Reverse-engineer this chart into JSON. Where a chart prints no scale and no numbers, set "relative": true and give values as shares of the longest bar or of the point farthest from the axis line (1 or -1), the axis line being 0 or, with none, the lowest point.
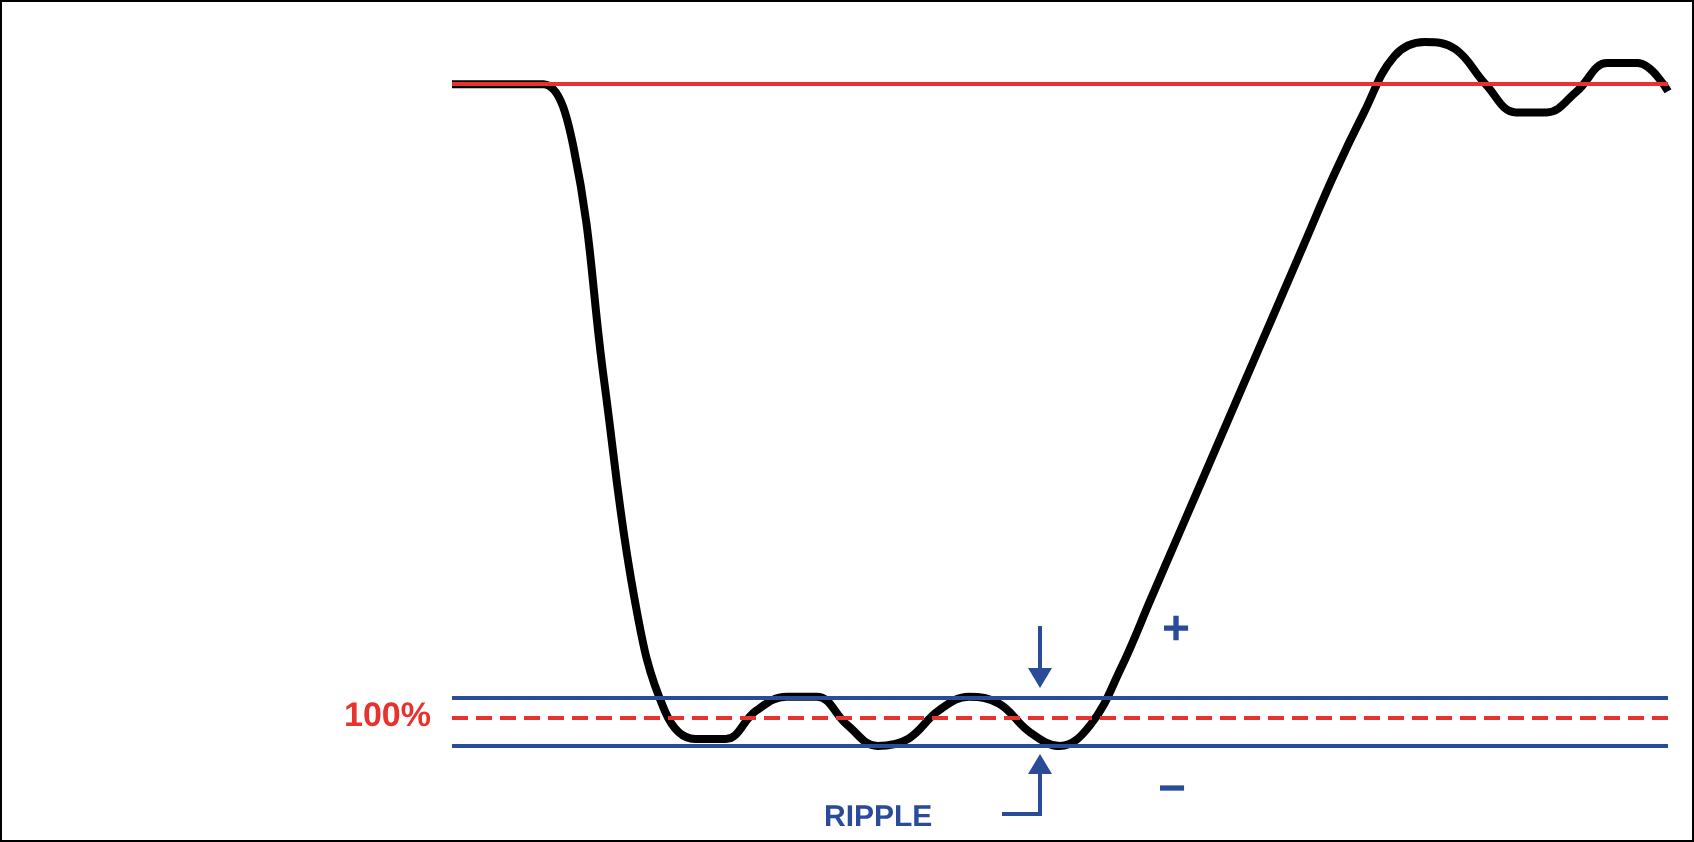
{
  "chart_data": {
    "type": "line",
    "relative": true,
    "categories": [
      null,
      null,
      null,
      null,
      null,
      null,
      null,
      null,
      null,
      null,
      null,
      null,
      null,
      null,
      null,
      null,
      null,
      null,
      null,
      null,
      null,
      null,
      null,
      null,
      null,
      null,
      null,
      null,
      null,
      null,
      null,
      null,
      null,
      null,
      null,
      null,
      null,
      null,
      null,
      null,
      null
    ],
    "series": [
      {
        "color": "#000000",
        "values": [
          0.94,
          0.94,
          0.94,
          0.94,
          0.85,
          0.52,
          0.21,
          0.05,
          0.01,
          0.01,
          0.05,
          0.07,
          0.07,
          0.03,
          0,
          0.01,
          0.05,
          0.07,
          0.06,
          0.02,
          0,
          0.03,
          0.11,
          0.21,
          0.31,
          0.41,
          0.51,
          0.61,
          0.71,
          0.81,
          0.9,
          0.98,
          1,
          0.99,
          0.94,
          0.9,
          0.9,
          0.93,
          0.97,
          0.97,
          0.93
        ]
      }
    ],
    "ref_lines": [
      {
        "axis": "y",
        "value": 0.94,
        "color": "#e8322d",
        "line_style": "solid"
      },
      {
        "axis": "y",
        "value": 0.04,
        "color": "#e8322d",
        "line_style": "dashed"
      },
      {
        "axis": "y",
        "value": 0.07,
        "color": "#2a4a9a",
        "line_style": "solid"
      },
      {
        "axis": "y",
        "value": 0,
        "color": "#2a4a9a",
        "line_style": "solid"
      }
    ],
    "annotations": [
      "+",
      "−",
      "RIPPLE",
      "100%"
    ]
  }
}
